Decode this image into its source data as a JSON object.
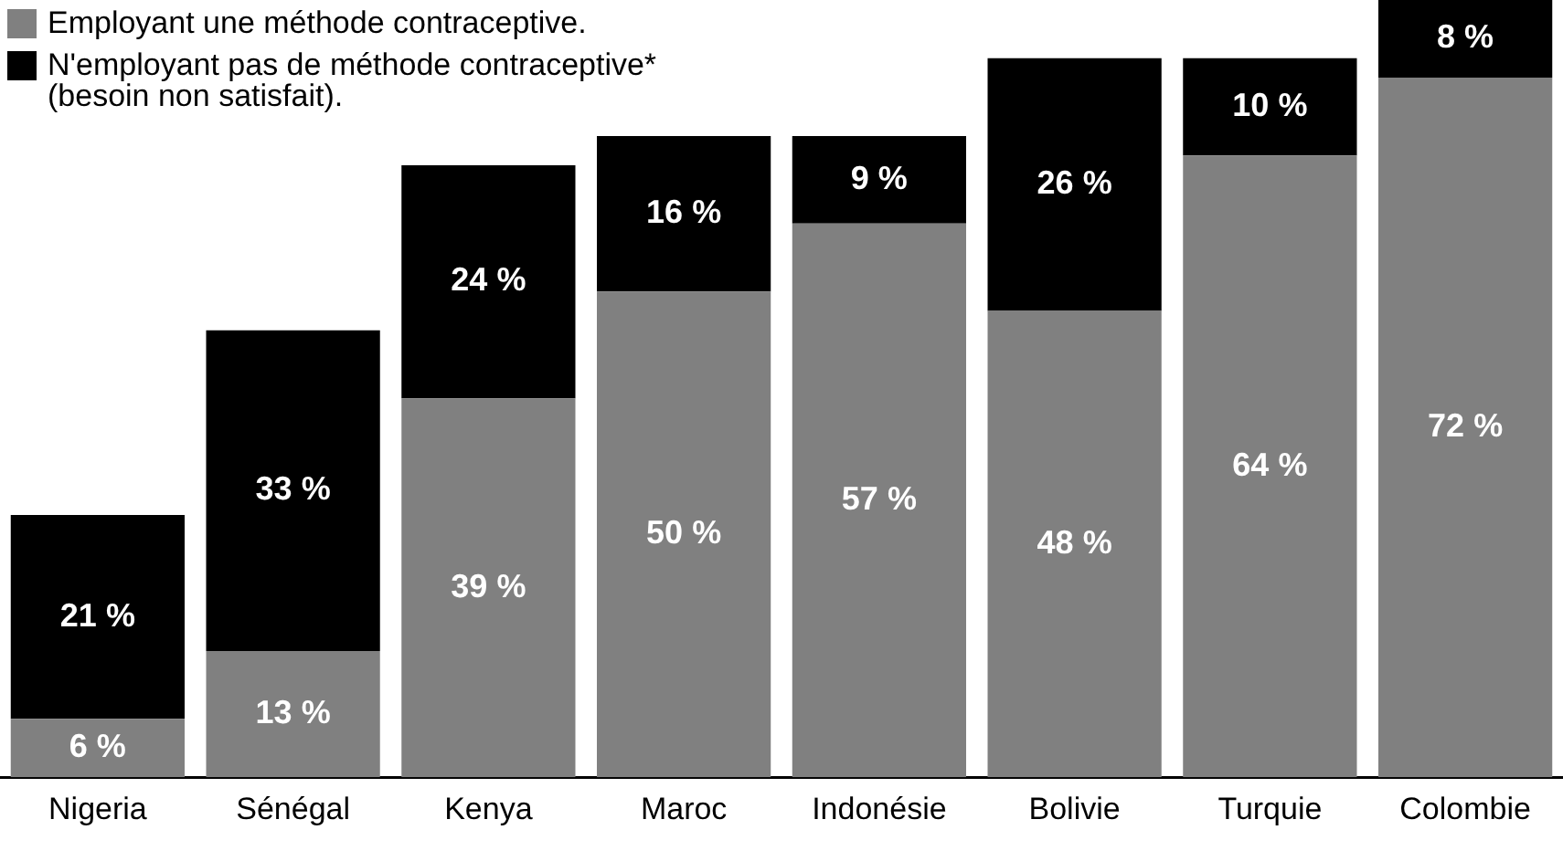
{
  "chart_data": {
    "type": "bar",
    "stacked": true,
    "categories": [
      "Nigeria",
      "Sénégal",
      "Kenya",
      "Maroc",
      "Indonésie",
      "Bolivie",
      "Turquie",
      "Colombie"
    ],
    "series": [
      {
        "name": "Employant une méthode contraceptive.",
        "color": "#808080",
        "values": [
          6,
          13,
          39,
          50,
          57,
          48,
          64,
          72
        ],
        "value_labels": [
          "6 %",
          "13 %",
          "39 %",
          "50 %",
          "57 %",
          "48 %",
          "64 %",
          "72 %"
        ]
      },
      {
        "name": "N'employant pas de méthode contraceptive*\n(besoin non satisfait).",
        "color": "#000000",
        "values": [
          21,
          33,
          24,
          16,
          9,
          26,
          10,
          8
        ],
        "value_labels": [
          "21 %",
          "33 %",
          "24 %",
          "16 %",
          "9 %",
          "26 %",
          "10 %",
          "8 %"
        ]
      }
    ],
    "ylim": [
      0,
      80
    ],
    "tick_labels": "x",
    "grid": false,
    "legend": "top left"
  }
}
